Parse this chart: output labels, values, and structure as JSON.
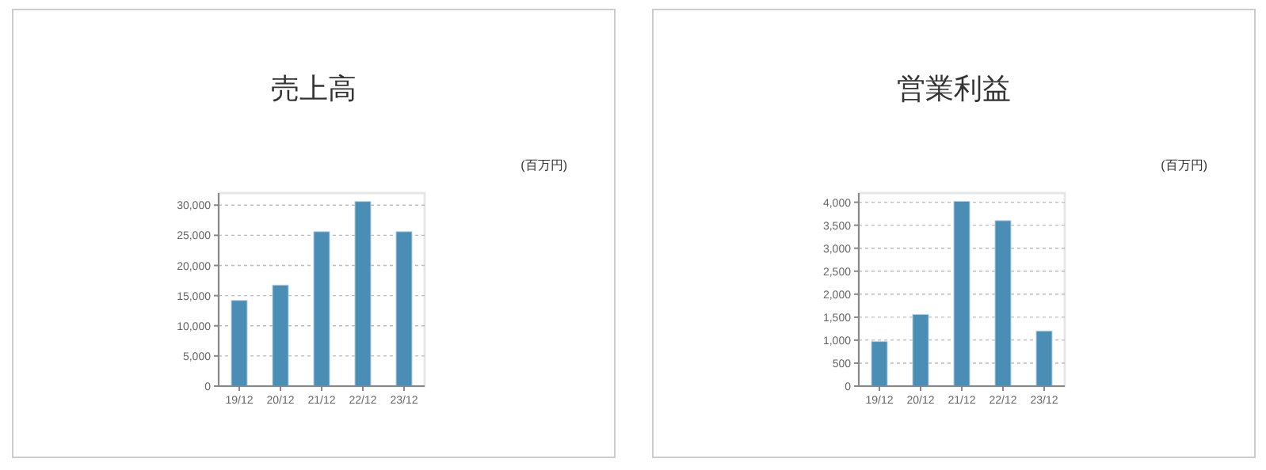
{
  "chart_data": [
    {
      "type": "bar",
      "title": "売上高",
      "annotations": [
        "(百万円)"
      ],
      "categories": [
        "19/12",
        "20/12",
        "21/12",
        "22/12",
        "23/12"
      ],
      "values": [
        14200,
        16750,
        25600,
        30600,
        25600
      ],
      "color": "#4a8db5",
      "ylim": [
        0,
        32000
      ],
      "yticks": [
        {
          "value": 0,
          "label": "0"
        },
        {
          "value": 5000,
          "label": "5,000"
        },
        {
          "value": 10000,
          "label": "10,000"
        },
        {
          "value": 15000,
          "label": "15,000"
        },
        {
          "value": 20000,
          "label": "20,000"
        },
        {
          "value": 25000,
          "label": "25,000"
        },
        {
          "value": 30000,
          "label": "30,000"
        }
      ],
      "grid": "y"
    },
    {
      "type": "bar",
      "title": "営業利益",
      "annotations": [
        "(百万円)"
      ],
      "categories": [
        "19/12",
        "20/12",
        "21/12",
        "22/12",
        "23/12"
      ],
      "values": [
        970,
        1560,
        4020,
        3600,
        1200
      ],
      "color": "#4a8db5",
      "ylim": [
        0,
        4200
      ],
      "yticks": [
        {
          "value": 0,
          "label": "0"
        },
        {
          "value": 500,
          "label": "500"
        },
        {
          "value": 1000,
          "label": "1,000"
        },
        {
          "value": 1500,
          "label": "1,500"
        },
        {
          "value": 2000,
          "label": "2,000"
        },
        {
          "value": 2500,
          "label": "2,500"
        },
        {
          "value": 3000,
          "label": "3,000"
        },
        {
          "value": 3500,
          "label": "3,500"
        },
        {
          "value": 4000,
          "label": "4,000"
        }
      ],
      "grid": "y"
    }
  ]
}
